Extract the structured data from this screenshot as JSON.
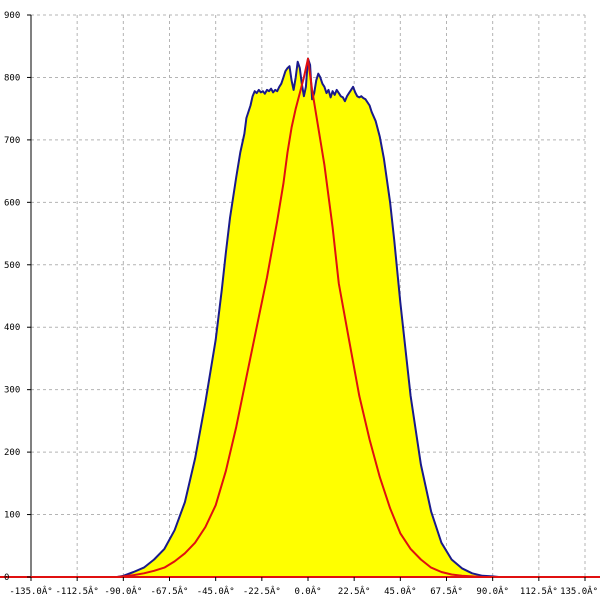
{
  "chart_data": {
    "type": "area",
    "title": "",
    "xlabel": "",
    "ylabel": "",
    "xlim": [
      -135,
      135
    ],
    "ylim": [
      0,
      900
    ],
    "grid": true,
    "x_ticks": [
      -135,
      -112.5,
      -90,
      -67.5,
      -45,
      -22.5,
      0,
      22.5,
      45,
      67.5,
      90,
      112.5,
      135
    ],
    "x_tick_labels": [
      "-135.0Â°",
      "-112.5Â°",
      "-90.0Â°",
      "-67.5Â°",
      "-45.0Â°",
      "-22.5Â°",
      "0.0Â°",
      "22.5Â°",
      "45.0Â°",
      "67.5Â°",
      "90.0Â°",
      "112.5Â°",
      "135.0Â°"
    ],
    "y_ticks": [
      0,
      100,
      200,
      300,
      400,
      500,
      600,
      700,
      800,
      900
    ],
    "y_tick_labels": [
      "0",
      "100",
      "200",
      "300",
      "400",
      "500",
      "600",
      "700",
      "800",
      "900"
    ],
    "series": [
      {
        "style": "filled-area",
        "color": "#1a1a8c",
        "fill": "#ffff00",
        "x": [
          -135,
          -93,
          -90,
          -85,
          -80,
          -75,
          -70,
          -65,
          -60,
          -55,
          -50,
          -45,
          -42,
          -40,
          -38,
          -35,
          -33,
          -31,
          -30,
          -28,
          -27,
          -26,
          -25,
          -24,
          -23,
          -22,
          -21,
          -20,
          -19,
          -18,
          -17,
          -16,
          -15,
          -14,
          -13,
          -12,
          -11,
          -10,
          -9,
          -8,
          -7,
          -6,
          -5,
          -4,
          -3,
          -2,
          -1,
          0,
          1,
          2,
          3,
          4,
          5,
          6,
          7,
          8,
          9,
          10,
          11,
          12,
          13,
          14,
          15,
          16,
          17,
          18,
          19,
          20,
          21,
          22,
          23,
          24,
          25,
          26,
          27,
          28,
          30,
          31,
          33,
          35,
          37,
          40,
          42,
          45,
          50,
          55,
          60,
          65,
          70,
          75,
          80,
          85,
          90,
          93,
          135
        ],
        "y": [
          0,
          0,
          2,
          8,
          15,
          28,
          45,
          75,
          120,
          190,
          280,
          380,
          460,
          520,
          575,
          640,
          680,
          710,
          735,
          755,
          770,
          778,
          775,
          780,
          776,
          778,
          774,
          780,
          778,
          782,
          776,
          780,
          778,
          785,
          790,
          800,
          810,
          815,
          818,
          795,
          780,
          800,
          825,
          815,
          790,
          770,
          785,
          830,
          820,
          765,
          775,
          795,
          806,
          800,
          790,
          785,
          775,
          780,
          768,
          778,
          772,
          780,
          775,
          770,
          768,
          762,
          770,
          775,
          780,
          785,
          776,
          770,
          768,
          770,
          767,
          765,
          755,
          745,
          730,
          705,
          670,
          600,
          540,
          440,
          290,
          180,
          105,
          55,
          28,
          14,
          6,
          2,
          1,
          0,
          0
        ]
      },
      {
        "style": "line",
        "color": "#e01010",
        "x": [
          -135,
          -93,
          -90,
          -85,
          -80,
          -75,
          -70,
          -65,
          -60,
          -55,
          -50,
          -45,
          -40,
          -35,
          -30,
          -25,
          -20,
          -15,
          -12,
          -10,
          -8,
          -6,
          -4,
          -2,
          0,
          2,
          4,
          6,
          8,
          10,
          12,
          15,
          20,
          25,
          30,
          35,
          40,
          45,
          50,
          55,
          60,
          65,
          70,
          75,
          80,
          85,
          90,
          93,
          135
        ],
        "y": [
          0,
          0,
          1,
          3,
          6,
          10,
          15,
          25,
          38,
          55,
          80,
          115,
          170,
          240,
          320,
          400,
          480,
          570,
          630,
          680,
          720,
          750,
          775,
          800,
          830,
          780,
          740,
          700,
          660,
          610,
          560,
          470,
          380,
          290,
          220,
          160,
          110,
          70,
          45,
          28,
          15,
          8,
          4,
          2,
          1,
          0,
          0,
          0,
          0
        ]
      }
    ]
  }
}
